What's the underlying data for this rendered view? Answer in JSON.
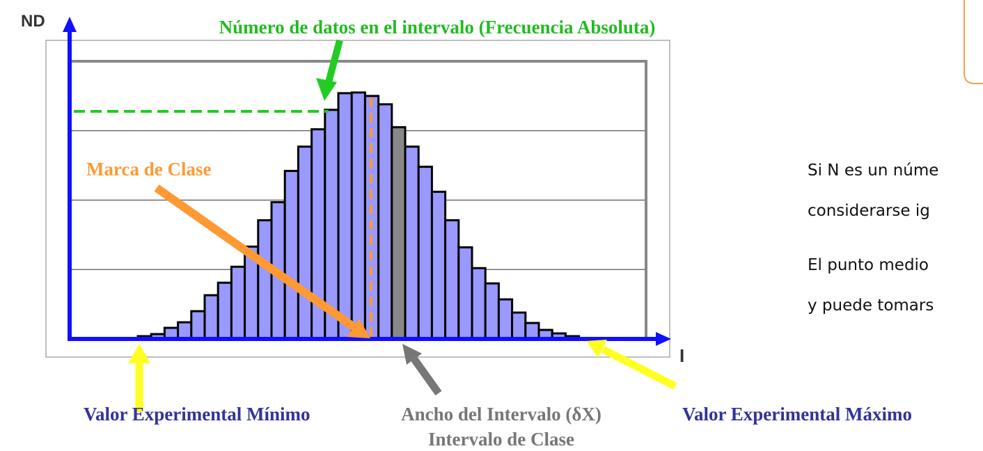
{
  "chart_data": {
    "type": "bar",
    "axis_y_label": "ND",
    "axis_x_label": "I",
    "values": [
      0.04,
      0.07,
      0.16,
      0.24,
      0.4,
      0.63,
      0.81,
      1.04,
      1.33,
      1.71,
      1.97,
      2.42,
      2.77,
      3.02,
      3.3,
      3.54,
      3.55,
      3.5,
      3.38,
      3.05,
      2.77,
      2.48,
      2.12,
      1.71,
      1.32,
      1.02,
      0.8,
      0.57,
      0.38,
      0.23,
      0.13,
      0.08,
      0.04
    ],
    "color": "#9999ff",
    "highlight": {
      "index": 19,
      "color": "#888888"
    },
    "ylim": [
      0,
      4
    ],
    "yticks": [
      0,
      1,
      2,
      3,
      4
    ],
    "grid": true
  },
  "annotations": {
    "frequency": "Número de datos en el intervalo (Frecuencia Absoluta)",
    "class_mark": "Marca de Clase",
    "min_value": "Valor Experimental Mínimo",
    "width": "Ancho del Intervalo (δX)",
    "class_interval": "Intervalo de Clase",
    "max_value": "Valor Experimental Máximo"
  },
  "side_text": [
    "Si N es un núme",
    "considerarse ig",
    "El punto medio",
    "y puede tomars"
  ]
}
